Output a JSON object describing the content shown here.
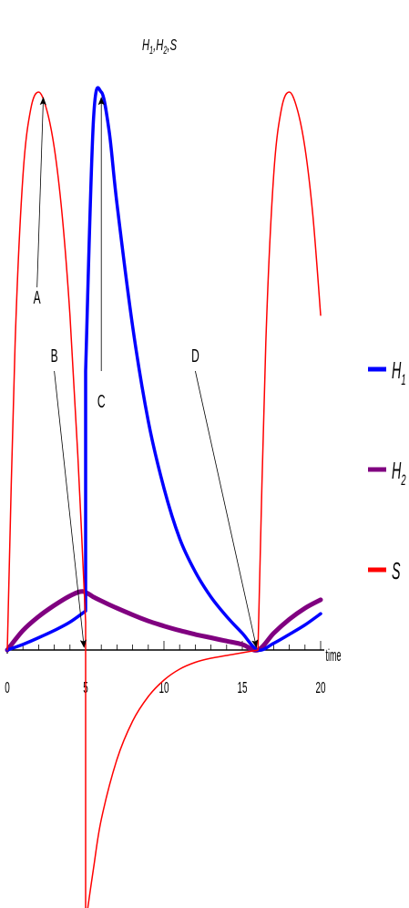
{
  "chart_data": {
    "type": "line",
    "title": "H1,H2,S",
    "title_parts": {
      "h": "H",
      "one": "1",
      "comma1": ",",
      "h2": "H",
      "two": "2",
      "comma2": ",",
      "s": "S"
    },
    "xlabel": "time",
    "xlim": [
      0,
      20
    ],
    "ylim": [
      -1.0,
      1.0
    ],
    "x_ticks": [
      "0",
      "5",
      "10",
      "15",
      "20"
    ],
    "series": [
      {
        "name": "H1",
        "color": "#0000ff",
        "x": [
          0,
          1,
          2,
          3,
          4,
          5,
          5,
          5.5,
          6,
          6.5,
          7,
          8,
          9,
          10,
          11,
          12,
          13,
          14,
          15,
          16,
          17,
          18,
          19,
          20
        ],
        "y": [
          0,
          0.01,
          0.022,
          0.035,
          0.05,
          0.07,
          0.5,
          0.95,
          1.0,
          0.93,
          0.8,
          0.58,
          0.41,
          0.29,
          0.2,
          0.14,
          0.095,
          0.06,
          0.03,
          0.0,
          0.012,
          0.028,
          0.045,
          0.065
        ]
      },
      {
        "name": "H2",
        "color": "#800080",
        "x": [
          0,
          1,
          2,
          3,
          4,
          4.8,
          5.5,
          6,
          7,
          8,
          9,
          10,
          11,
          12,
          13,
          14,
          15,
          16,
          17,
          18,
          19,
          20
        ],
        "y": [
          0,
          0.035,
          0.06,
          0.08,
          0.097,
          0.105,
          0.095,
          0.088,
          0.075,
          0.063,
          0.052,
          0.043,
          0.035,
          0.028,
          0.022,
          0.016,
          0.01,
          0.0,
          0.03,
          0.055,
          0.075,
          0.09
        ]
      },
      {
        "name": "S",
        "color": "#ff0000",
        "x": [
          0,
          0.5,
          1,
          1.5,
          2,
          2.5,
          3,
          3.5,
          4,
          4.5,
          5,
          5,
          5.5,
          6,
          7,
          8,
          9,
          10,
          11,
          12,
          13,
          14,
          15,
          16,
          16,
          16.5,
          17,
          17.5,
          18,
          18.5,
          19,
          19.5,
          20
        ],
        "y": [
          0,
          0.55,
          0.85,
          0.97,
          1.0,
          0.97,
          0.9,
          0.78,
          0.6,
          0.35,
          0.05,
          -1.0,
          -0.8,
          -0.62,
          -0.4,
          -0.26,
          -0.17,
          -0.11,
          -0.07,
          -0.045,
          -0.03,
          -0.02,
          -0.01,
          0.0,
          0.0,
          0.55,
          0.85,
          0.97,
          1.0,
          0.97,
          0.9,
          0.78,
          0.6
        ]
      }
    ],
    "legend": {
      "placement": "right",
      "entries": [
        {
          "series": "H1",
          "letter": "H",
          "sub": "1"
        },
        {
          "series": "H2",
          "letter": "H",
          "sub": "2"
        },
        {
          "series": "S",
          "letter": "S",
          "sub": ""
        }
      ]
    },
    "annotations": [
      {
        "text": "A",
        "from": [
          1.9,
          0.65
        ],
        "to": [
          2.3,
          0.99
        ]
      },
      {
        "text": "B",
        "from": [
          3.0,
          0.5
        ],
        "to": [
          4.9,
          0.005
        ]
      },
      {
        "text": "C",
        "from": [
          6.0,
          0.5
        ],
        "to": [
          6.0,
          0.99
        ]
      },
      {
        "text": "D",
        "from": [
          12.0,
          0.5
        ],
        "to": [
          15.9,
          0.005
        ]
      }
    ]
  }
}
